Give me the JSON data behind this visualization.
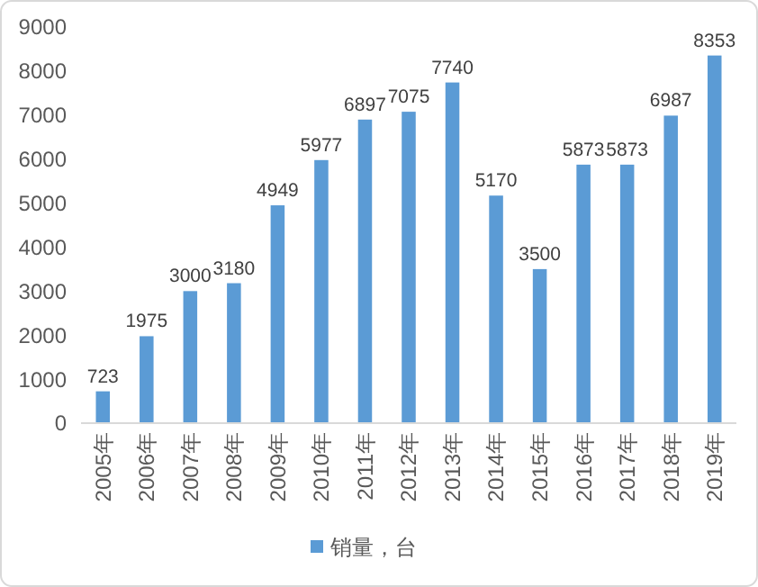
{
  "chart_data": {
    "type": "bar",
    "categories": [
      "2005年",
      "2006年",
      "2007年",
      "2008年",
      "2009年",
      "2010年",
      "2011年",
      "2012年",
      "2013年",
      "2014年",
      "2015年",
      "2016年",
      "2017年",
      "2018年",
      "2019年"
    ],
    "series": [
      {
        "name": "销量，台",
        "color": "#5b9bd5",
        "values": [
          723,
          1975,
          3000,
          3180,
          4949,
          5977,
          6897,
          7075,
          7740,
          5170,
          3500,
          5873,
          5873,
          6987,
          8353
        ]
      }
    ],
    "ylim": [
      0,
      9000
    ],
    "yticks": [
      0,
      1000,
      2000,
      3000,
      4000,
      5000,
      6000,
      7000,
      8000,
      9000
    ],
    "grid": false,
    "data_labels": true,
    "legend": "bottom"
  }
}
